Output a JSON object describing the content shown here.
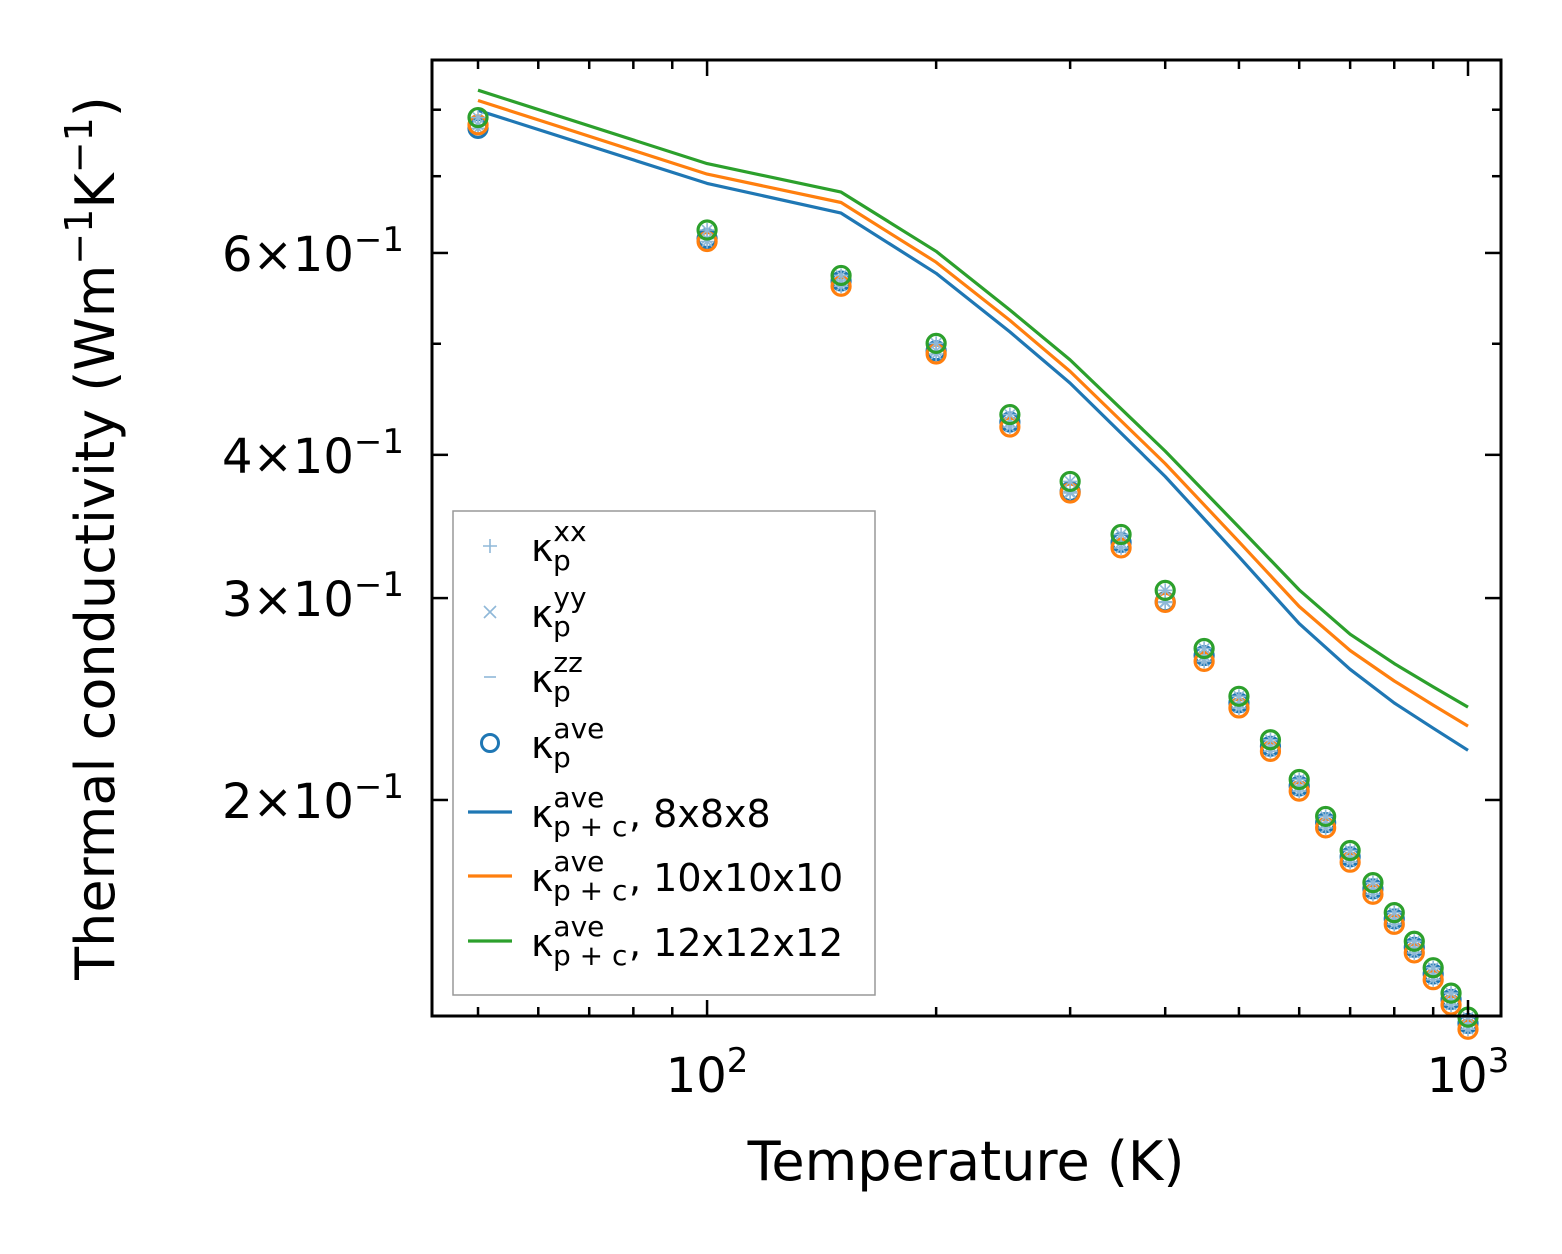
{
  "chart_data": {
    "type": "scatter",
    "xscale": "log",
    "yscale": "log",
    "xlabel": "Temperature (K)",
    "ylabel_main": "Thermal conductivity (Wm",
    "ylabel_exp1": "−1",
    "ylabel_mid": "K",
    "ylabel_exp2": "−1",
    "ylabel_end": ")",
    "xlim": [
      43.5,
      1105
    ],
    "ylim": [
      0.1296,
      0.884
    ],
    "xticks": [
      {
        "value": 100,
        "base": "10",
        "exp": "2"
      },
      {
        "value": 1000,
        "base": "10",
        "exp": "3"
      }
    ],
    "yticks": [
      {
        "value": 0.2,
        "mant": "2",
        "base": "×10",
        "exp": "−1"
      },
      {
        "value": 0.3,
        "mant": "3",
        "base": "×10",
        "exp": "−1"
      },
      {
        "value": 0.4,
        "mant": "4",
        "base": "×10",
        "exp": "−1"
      },
      {
        "value": 0.6,
        "mant": "6",
        "base": "×10",
        "exp": "−1"
      }
    ],
    "x": [
      50,
      100,
      150,
      200,
      250,
      300,
      350,
      400,
      450,
      500,
      550,
      600,
      650,
      700,
      750,
      800,
      850,
      900,
      950,
      1000
    ],
    "scatter_series": [
      {
        "name": "κp ave (8x8x8)",
        "color": "#1f77b4",
        "values": [
          0.7705,
          0.6176,
          0.5672,
          0.493,
          0.4273,
          0.3716,
          0.3355,
          0.2978,
          0.2673,
          0.2431,
          0.2228,
          0.2057,
          0.1911,
          0.1784,
          0.1673,
          0.1575,
          0.1488,
          0.141,
          0.134,
          0.1277
        ]
      },
      {
        "name": "κp ave (10x10x10)",
        "color": "#ff7f0e",
        "values": [
          0.776,
          0.6139,
          0.5612,
          0.4898,
          0.423,
          0.3705,
          0.3318,
          0.2974,
          0.2642,
          0.2406,
          0.2205,
          0.2036,
          0.1891,
          0.1765,
          0.1655,
          0.1558,
          0.1471,
          0.1394,
          0.1325,
          0.1262
        ]
      },
      {
        "name": "κp ave (12x12x12)",
        "color": "#2ca02c",
        "values": [
          0.7875,
          0.6283,
          0.5735,
          0.5004,
          0.4337,
          0.3792,
          0.3409,
          0.3047,
          0.2711,
          0.2463,
          0.2257,
          0.2084,
          0.1935,
          0.1807,
          0.1694,
          0.1595,
          0.1506,
          0.1428,
          0.1357,
          0.1293
        ]
      }
    ],
    "line_x": [
      50,
      100,
      150,
      200,
      250,
      300,
      400,
      500,
      600,
      700,
      800,
      900,
      1000
    ],
    "line_series": [
      {
        "name": "8x8x8",
        "color": "#1f77b4",
        "values": [
          0.799,
          0.69,
          0.65,
          0.576,
          0.512,
          0.462,
          0.383,
          0.326,
          0.285,
          0.26,
          0.243,
          0.231,
          0.221
        ]
      },
      {
        "name": "10x10x10",
        "color": "#ff7f0e",
        "values": [
          0.815,
          0.703,
          0.664,
          0.589,
          0.524,
          0.473,
          0.393,
          0.336,
          0.295,
          0.27,
          0.254,
          0.242,
          0.232
        ]
      },
      {
        "name": "12x12x12",
        "color": "#2ca02c",
        "values": [
          0.832,
          0.718,
          0.678,
          0.602,
          0.535,
          0.484,
          0.403,
          0.346,
          0.305,
          0.279,
          0.263,
          0.251,
          0.241
        ]
      }
    ],
    "legend": {
      "position": "lower-left",
      "entries": [
        {
          "marker": "plus",
          "color": "#8fb8d8",
          "base": "κ",
          "sup": "xx",
          "sub": "p",
          "suffix": ""
        },
        {
          "marker": "x",
          "color": "#8fb8d8",
          "base": "κ",
          "sup": "yy",
          "sub": "p",
          "suffix": ""
        },
        {
          "marker": "dash",
          "color": "#8fb8d8",
          "base": "κ",
          "sup": "zz",
          "sub": "p",
          "suffix": ""
        },
        {
          "marker": "circle",
          "color": "#1f77b4",
          "base": "κ",
          "sup": "ave",
          "sub": "p",
          "suffix": ""
        },
        {
          "marker": "line",
          "color": "#1f77b4",
          "base": "κ",
          "sup": "ave",
          "sub": "p + c",
          "suffix": ", 8x8x8"
        },
        {
          "marker": "line",
          "color": "#ff7f0e",
          "base": "κ",
          "sup": "ave",
          "sub": "p + c",
          "suffix": ", 10x10x10"
        },
        {
          "marker": "line",
          "color": "#2ca02c",
          "base": "κ",
          "sup": "ave",
          "sub": "p + c",
          "suffix": ", 12x12x12"
        }
      ]
    }
  }
}
